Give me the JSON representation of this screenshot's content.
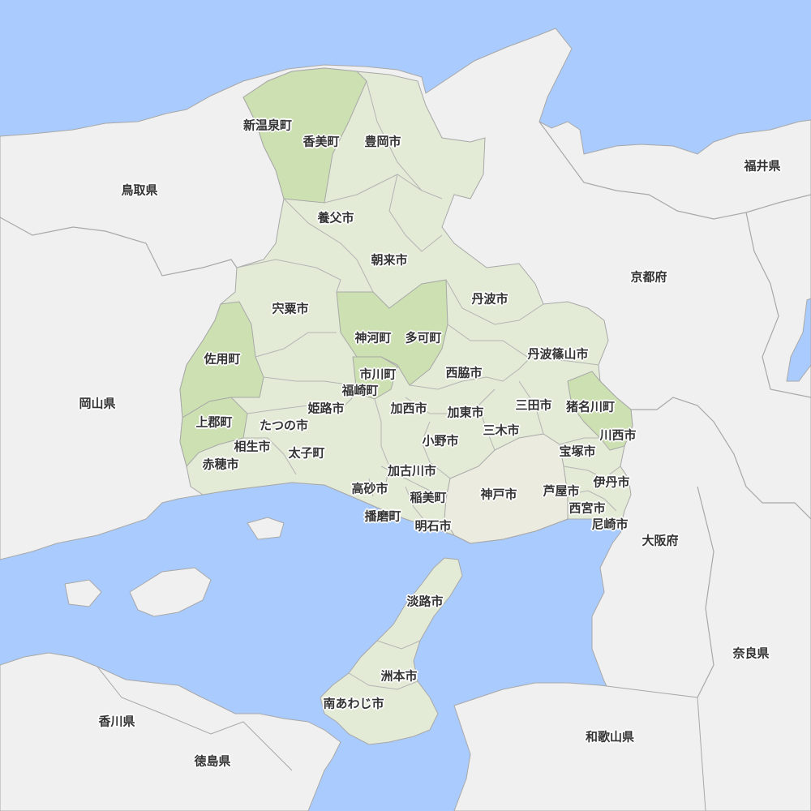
{
  "colors": {
    "sea": "#aacbfd",
    "land": "#f0f0f0",
    "prefecture": "#e3ebd6",
    "city_dark": "#cde0b2",
    "kobe": "#ecebdf",
    "border": "#a8a8a8",
    "text": "#333333"
  },
  "map": {
    "prefecture_labels": [
      "鳥取県",
      "福井県",
      "京都府",
      "岡山県",
      "大阪府",
      "奈良県",
      "香川県",
      "和歌山県",
      "徳島県"
    ],
    "municipality_labels": [
      "新温泉町",
      "香美町",
      "豊岡市",
      "養父市",
      "朝来市",
      "宍粟市",
      "丹波市",
      "神河町",
      "多可町",
      "佐用町",
      "丹波篠山市",
      "市川町",
      "西脇市",
      "福崎町",
      "姫路市",
      "加西市",
      "加東市",
      "三田市",
      "猪名川町",
      "上郡町",
      "たつの市",
      "三木市",
      "川西市",
      "小野市",
      "相生市",
      "宝塚市",
      "太子町",
      "赤穂市",
      "加古川市",
      "伊丹市",
      "高砂市",
      "稲美町",
      "神戸市",
      "芦屋市",
      "西宮市",
      "播磨町",
      "尼崎市",
      "明石市",
      "淡路市",
      "洲本市",
      "南あわじ市"
    ]
  }
}
